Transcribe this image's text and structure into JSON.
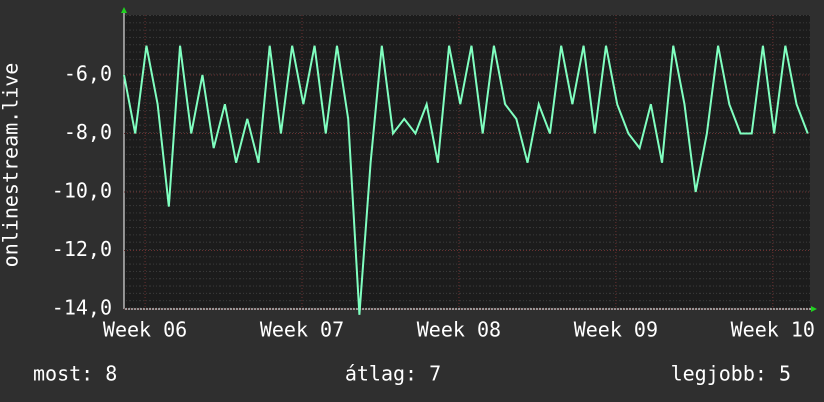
{
  "chart_data": {
    "type": "line",
    "y_label": "onlinestream.live",
    "x": [
      0,
      0.5,
      1,
      1.5,
      2,
      2.5,
      3,
      3.5,
      4,
      4.5,
      5,
      5.5,
      6,
      6.5,
      7,
      7.5,
      8,
      8.5,
      9,
      9.5,
      10,
      10.5,
      11,
      11.5,
      12,
      12.5,
      13,
      13.5,
      14,
      14.5,
      15,
      15.5,
      16,
      16.5,
      17,
      17.5,
      18,
      18.5,
      19,
      19.5,
      20,
      20.5,
      21,
      21.5,
      22,
      22.5,
      23,
      23.5,
      24,
      24.5,
      25,
      25.5,
      26,
      26.5,
      27,
      27.5,
      28,
      28.5,
      29,
      29.5,
      30,
      30.5
    ],
    "series": [
      {
        "name": "onlinestream.live",
        "color": "#80ffc0",
        "values": [
          -6,
          -8,
          -5,
          -7,
          -10.5,
          -5,
          -8,
          -6,
          -8.5,
          -7,
          -9,
          -7.5,
          -9,
          -5,
          -8,
          -5,
          -7,
          -5,
          -8,
          -5,
          -7.5,
          -14.2,
          -9,
          -5,
          -8,
          -7.5,
          -8,
          -7,
          -9,
          -5,
          -7,
          -5,
          -8,
          -5,
          -7,
          -7.5,
          -9,
          -7,
          -8,
          -5,
          -7,
          -5,
          -8,
          -5,
          -7,
          -8,
          -8.5,
          -7,
          -9,
          -5,
          -7,
          -10,
          -8,
          -5,
          -7,
          -8,
          -8,
          -5,
          -8,
          -5,
          -7,
          -8
        ]
      }
    ],
    "xlim": [
      0,
      30.6
    ],
    "xticks": [
      {
        "value": 0.94,
        "label": "Week 06"
      },
      {
        "value": 7.94,
        "label": "Week 07"
      },
      {
        "value": 14.94,
        "label": "Week 08"
      },
      {
        "value": 21.94,
        "label": "Week 09"
      },
      {
        "value": 28.94,
        "label": "Week 10"
      }
    ],
    "ylim": [
      -14,
      -3.95
    ],
    "yticks": [
      {
        "value": -14,
        "label": "-14,0"
      },
      {
        "value": -12,
        "label": "-12,0"
      },
      {
        "value": -10,
        "label": "-10,0"
      },
      {
        "value": -8,
        "label": "-8,0"
      },
      {
        "value": -6,
        "label": "-6,0"
      }
    ],
    "grid": true,
    "footer": {
      "current": "most: 8",
      "average": "átlag: 7",
      "best": "legjobb: 5"
    }
  }
}
